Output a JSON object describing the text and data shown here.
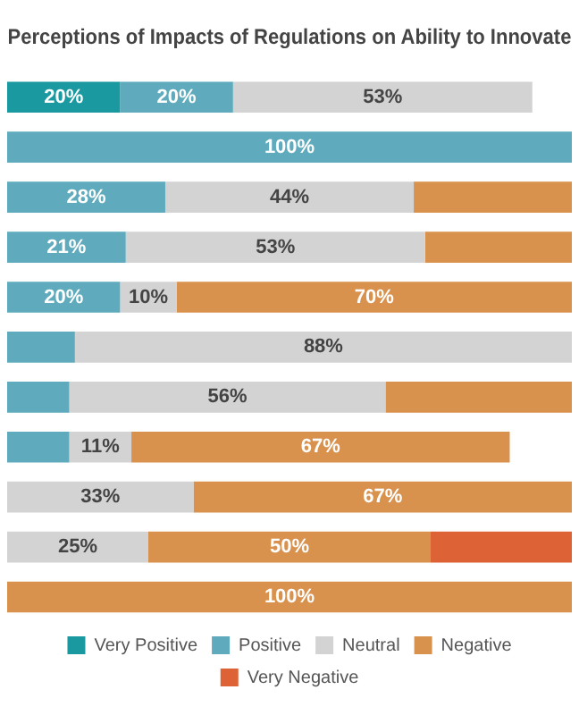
{
  "chart_data": {
    "type": "bar",
    "orientation": "horizontal",
    "stacked": true,
    "title": "Perceptions of Impacts of Regulations on Ability to Innovate",
    "categories": [
      null,
      null,
      null,
      null,
      null,
      null,
      null,
      null,
      null,
      null,
      null
    ],
    "xlim": [
      0,
      100
    ],
    "grid": false,
    "legend": "bottom",
    "series": [
      {
        "name": "Very Positive",
        "color": "#1a9aa0",
        "values": [
          20,
          null,
          null,
          null,
          null,
          null,
          null,
          null,
          null,
          null,
          null
        ],
        "value_labels": [
          "20%",
          null,
          null,
          null,
          null,
          null,
          null,
          null,
          null,
          null,
          null
        ]
      },
      {
        "name": "Positive",
        "color": "#5fabbd",
        "values": [
          20,
          100,
          28,
          21,
          20,
          12,
          11,
          11,
          null,
          null,
          null
        ],
        "value_labels": [
          "20%",
          "100%",
          "28%",
          "21%",
          "20%",
          null,
          null,
          null,
          null,
          null,
          null
        ]
      },
      {
        "name": "Neutral",
        "color": "#d3d3d3",
        "values": [
          53,
          null,
          44,
          53,
          10,
          88,
          56,
          11,
          33,
          25,
          null
        ],
        "value_labels": [
          "53%",
          null,
          "44%",
          "53%",
          "10%",
          "88%",
          "56%",
          "11%",
          "33%",
          "25%",
          null
        ]
      },
      {
        "name": "Negative",
        "color": "#d9924e",
        "values": [
          null,
          null,
          28,
          26,
          70,
          null,
          33,
          67,
          67,
          50,
          100
        ],
        "value_labels": [
          null,
          null,
          null,
          null,
          "70%",
          null,
          null,
          "67%",
          "67%",
          "50%",
          "100%"
        ]
      },
      {
        "name": "Very Negative",
        "color": "#dd6235",
        "values": [
          null,
          null,
          null,
          null,
          null,
          null,
          null,
          null,
          null,
          25,
          null
        ],
        "value_labels": [
          null,
          null,
          null,
          null,
          null,
          null,
          null,
          null,
          null,
          null,
          null
        ]
      }
    ]
  }
}
